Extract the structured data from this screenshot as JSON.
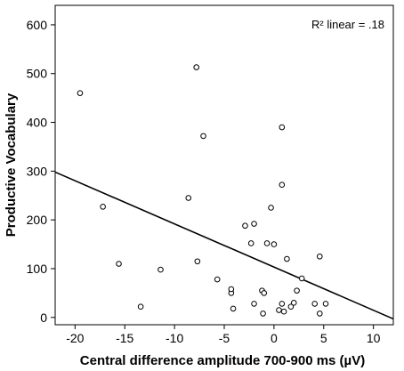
{
  "chart_data": {
    "type": "scatter",
    "xlabel": "Central difference amplitude 700-900 ms (µV)",
    "ylabel": "Productive Vocabulary",
    "xlim": [
      -22,
      12
    ],
    "ylim": [
      -15,
      640
    ],
    "xticks": [
      -20,
      -15,
      -10,
      -5,
      0,
      5,
      10
    ],
    "yticks": [
      0,
      100,
      200,
      300,
      400,
      500,
      600
    ],
    "grid": false,
    "annotation": "R² linear = .18",
    "points": [
      {
        "x": -19.5,
        "y": 460
      },
      {
        "x": -17.2,
        "y": 227
      },
      {
        "x": -15.6,
        "y": 110
      },
      {
        "x": -13.4,
        "y": 22
      },
      {
        "x": -11.4,
        "y": 98
      },
      {
        "x": -8.6,
        "y": 245
      },
      {
        "x": -7.8,
        "y": 513
      },
      {
        "x": -7.7,
        "y": 115
      },
      {
        "x": -7.1,
        "y": 372
      },
      {
        "x": -5.7,
        "y": 78
      },
      {
        "x": -4.3,
        "y": 50
      },
      {
        "x": -4.3,
        "y": 58
      },
      {
        "x": -4.1,
        "y": 18
      },
      {
        "x": -2.9,
        "y": 188
      },
      {
        "x": -2.3,
        "y": 152
      },
      {
        "x": -2.0,
        "y": 192
      },
      {
        "x": -2.0,
        "y": 28
      },
      {
        "x": -1.2,
        "y": 55
      },
      {
        "x": -1.0,
        "y": 50
      },
      {
        "x": -1.1,
        "y": 8
      },
      {
        "x": -0.7,
        "y": 152
      },
      {
        "x": -0.3,
        "y": 225
      },
      {
        "x": 0.0,
        "y": 150
      },
      {
        "x": 0.5,
        "y": 15
      },
      {
        "x": 0.8,
        "y": 390
      },
      {
        "x": 0.8,
        "y": 272
      },
      {
        "x": 0.8,
        "y": 28
      },
      {
        "x": 1.0,
        "y": 12
      },
      {
        "x": 1.3,
        "y": 120
      },
      {
        "x": 1.7,
        "y": 22
      },
      {
        "x": 2.0,
        "y": 30
      },
      {
        "x": 2.3,
        "y": 55
      },
      {
        "x": 2.8,
        "y": 80
      },
      {
        "x": 4.1,
        "y": 28
      },
      {
        "x": 4.6,
        "y": 125
      },
      {
        "x": 4.6,
        "y": 8
      },
      {
        "x": 5.2,
        "y": 28
      }
    ],
    "fit_line": {
      "x1": -22,
      "y1": 298,
      "x2": 12,
      "y2": -3
    }
  }
}
